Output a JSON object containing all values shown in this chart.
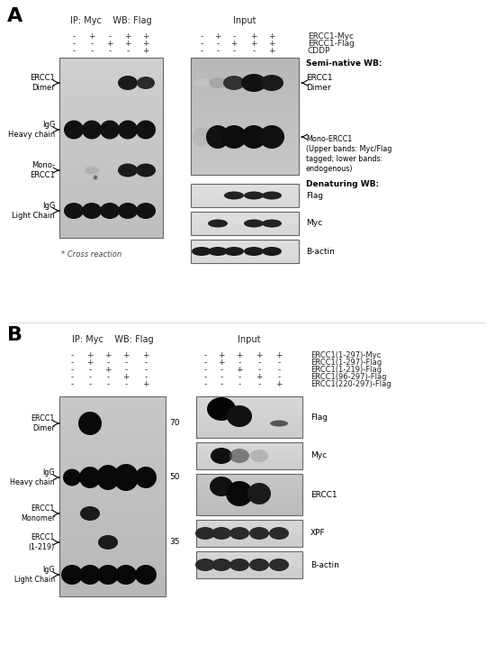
{
  "fig_width": 5.5,
  "fig_height": 7.16,
  "bg_color": "#ffffff",
  "panel_A": {
    "label": "A",
    "ip_header": "IP: Myc    WB: Flag",
    "input_header": "Input",
    "cond_labels_A": [
      "ERCC1-Myc",
      "ERCC1-Flag",
      "CDDP"
    ],
    "ip_conds_A": [
      [
        "-",
        "+",
        "-",
        "+",
        "+"
      ],
      [
        "-",
        "-",
        "+",
        "+",
        "+"
      ],
      [
        "-",
        "-",
        "-",
        "-",
        "+"
      ]
    ],
    "input_conds_A": [
      [
        "-",
        "+",
        "-",
        "+",
        "+"
      ],
      [
        "-",
        "-",
        "+",
        "+",
        "+"
      ],
      [
        "-",
        "-",
        "-",
        "-",
        "+"
      ]
    ],
    "left_labels_A": [
      "ERCC1\nDimer",
      "IgG\nHeavy chain",
      "Mono-\nERCC1",
      "IgG\nLight Chain"
    ],
    "semi_native_label": "Semi-native WB:",
    "ercc1_dimer_label": "ERCC1\nDimer",
    "mono_ercc1_label": "Mono-ERCC1\n(Upper bands: Myc/Flag\ntagged; lower bands:\nendogenous)",
    "denaturing_label": "Denaturing WB:",
    "den_labels_A": [
      "Flag",
      "Myc",
      "B-actin"
    ],
    "cross_note": "* Cross reaction"
  },
  "panel_B": {
    "label": "B",
    "ip_header": "IP: Myc    WB: Flag",
    "input_header": "Input",
    "cond_labels_B": [
      "ERCC1(1-297)-Myc",
      "ERCC1(1-297)-Flag",
      "ERCC1(1-219)-Flag",
      "ERCC1(96-297)-Flag",
      "ERCC1(220-297)-Flag"
    ],
    "ip_conds_B": [
      [
        "-",
        "+",
        "+",
        "+",
        "+"
      ],
      [
        "-",
        "+",
        "-",
        "-",
        "-"
      ],
      [
        "-",
        "-",
        "+",
        "-",
        "-"
      ],
      [
        "-",
        "-",
        "-",
        "+",
        "-"
      ],
      [
        "-",
        "-",
        "-",
        "-",
        "+"
      ]
    ],
    "input_conds_B": [
      [
        "-",
        "+",
        "+",
        "+",
        "+"
      ],
      [
        "-",
        "+",
        "-",
        "-",
        "-"
      ],
      [
        "-",
        "-",
        "+",
        "-",
        "-"
      ],
      [
        "-",
        "-",
        "-",
        "+",
        "-"
      ],
      [
        "-",
        "-",
        "-",
        "-",
        "+"
      ]
    ],
    "left_labels_B": [
      "ERCC1\nDimer",
      "IgG\nHeavy chain",
      "ERCC1\nMonomer",
      "ERCC1\n(1-219)",
      "IgG\nLight Chain"
    ],
    "mw_markers": [
      [
        "70",
        0.18
      ],
      [
        "50",
        0.47
      ],
      [
        "35",
        0.68
      ]
    ],
    "right_labels_B": [
      "Flag",
      "Myc",
      "ERCC1",
      "XPF",
      "B-actin"
    ]
  }
}
